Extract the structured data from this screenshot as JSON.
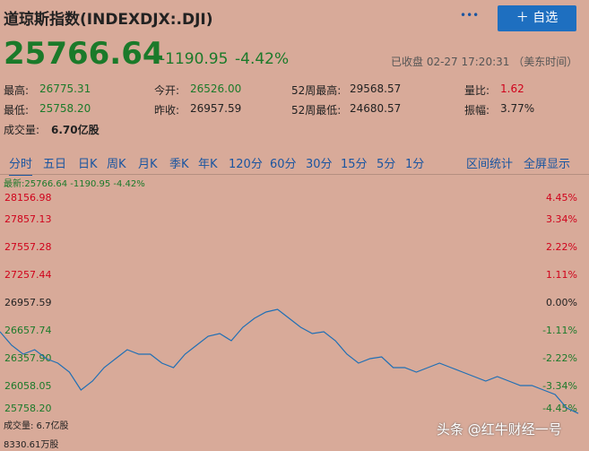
{
  "header": {
    "title": "道琼斯指数(INDEXDJX:.DJI)",
    "more": "•••",
    "button": "自选",
    "price": "25766.64",
    "change": "-1190.95",
    "change_pct": "-4.42%",
    "status": "已收盘 02-27 17:20:31 （美东时间）"
  },
  "stats": [
    [
      {
        "label": "最高:",
        "value": "26775.31",
        "color": "#1b7a2a"
      },
      {
        "label": "今开:",
        "value": "26526.00",
        "color": "#1b7a2a"
      },
      {
        "label": "52周最高:",
        "value": "29568.57",
        "color": "#222"
      },
      {
        "label": "量比:",
        "value": "1.62",
        "color": "#d0021b"
      }
    ],
    [
      {
        "label": "最低:",
        "value": "25758.20",
        "color": "#1b7a2a"
      },
      {
        "label": "昨收:",
        "value": "26957.59",
        "color": "#222"
      },
      {
        "label": "52周最低:",
        "value": "24680.57",
        "color": "#222"
      },
      {
        "label": "振幅:",
        "value": "3.77%",
        "color": "#222"
      }
    ],
    [
      {
        "label": "成交量:",
        "value": "6.70亿股",
        "color": "#222"
      }
    ]
  ],
  "tabs": [
    "分时",
    "五日",
    "日K",
    "周K",
    "月K",
    "季K",
    "年K",
    "120分",
    "60分",
    "30分",
    "15分",
    "5分",
    "1分"
  ],
  "tools": [
    "区间统计",
    "全屏显示"
  ],
  "chart_data": {
    "type": "line",
    "subtitle": "最新:25766.64 -1190.95 -4.42%",
    "color": "#1f6fb5",
    "grid": false,
    "values": [
      26648,
      26503,
      26406,
      26455,
      26358,
      26310,
      26213,
      26019,
      26116,
      26261,
      26358,
      26455,
      26406,
      26406,
      26310,
      26261,
      26406,
      26503,
      26600,
      26629,
      26551,
      26696,
      26793,
      26861,
      26890,
      26793,
      26696,
      26629,
      26648,
      26551,
      26406,
      26310,
      26358,
      26377,
      26261,
      26261,
      26213,
      26261,
      26310,
      26261,
      26213,
      26164,
      26116,
      26164,
      26116,
      26068,
      26068,
      26019,
      25971,
      25826,
      25766.64
    ],
    "ylim": [
      {
        "value": 25758.2,
        "label": "25758.20"
      },
      28156.98
    ],
    "yticks": [
      28156.98,
      27857.13,
      27557.28,
      27257.44,
      26957.59,
      26657.74,
      {
        "value": 26357.9,
        "label": "26357.90"
      },
      26058.05,
      {
        "value": 25758.2,
        "label": "25758.20"
      }
    ],
    "y2lim": [
      -4.45,
      4.45
    ],
    "y2ticks": [
      {
        "value": 4.45,
        "label": "4.45%"
      },
      {
        "value": 3.34,
        "label": "3.34%"
      },
      {
        "value": 2.22,
        "label": "2.22%"
      },
      {
        "value": 1.11,
        "label": "1.11%"
      },
      {
        "value": 0,
        "label": "0.00%"
      },
      {
        "value": -1.11,
        "label": "-1.11%"
      },
      {
        "value": -2.22,
        "label": "-2.22%"
      },
      {
        "value": -3.34,
        "label": "-3.34%"
      },
      {
        "value": -4.45,
        "label": "-4.45%"
      }
    ],
    "volume_label": "成交量: 6.7亿股",
    "volume_max": "8330.61万股"
  },
  "watermark": "头条 @红牛财经一号"
}
